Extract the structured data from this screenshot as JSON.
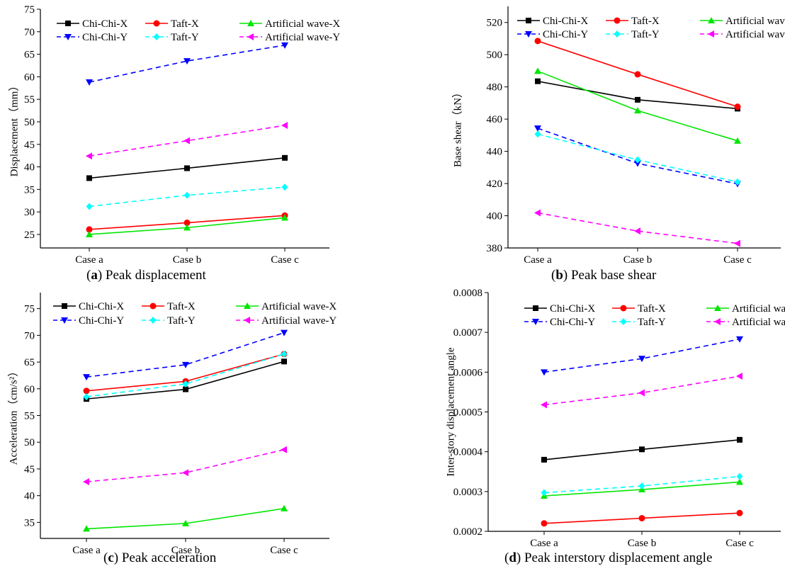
{
  "captions": [
    {
      "letter": "a",
      "open": "(",
      "close": ")",
      "text": " Peak displacement"
    },
    {
      "letter": "b",
      "open": "(",
      "close": ")",
      "text": " Peak base shear"
    },
    {
      "letter": "c",
      "open": "(",
      "close": ")",
      "text": " Peak acceleration"
    },
    {
      "letter": "d",
      "open": "(",
      "close": ")",
      "text": " Peak interstory displacement angle"
    }
  ],
  "chart_data": [
    {
      "type": "line",
      "title": "",
      "xlabel": "",
      "ylabel": "Displacement（mm）",
      "categories": [
        "Case a",
        "Case b",
        "Case c"
      ],
      "ylim": [
        22,
        75
      ],
      "yticks": [
        25,
        30,
        35,
        40,
        45,
        50,
        55,
        60,
        65,
        70,
        75
      ],
      "ytick_labels": [
        "25",
        "30",
        "35",
        "40",
        "45",
        "50",
        "55",
        "60",
        "65",
        "70",
        "75"
      ],
      "grid": false,
      "legend": "top",
      "series": [
        {
          "name": "Chi-Chi-X",
          "values": [
            37.5,
            39.7,
            42.0
          ],
          "color": "#000000",
          "marker": "square",
          "dash": "solid"
        },
        {
          "name": "Taft-X",
          "values": [
            26.1,
            27.6,
            29.2
          ],
          "color": "#ff0000",
          "marker": "circle",
          "dash": "solid"
        },
        {
          "name": "Artificial wave-X",
          "values": [
            25.0,
            26.5,
            28.7
          ],
          "color": "#00e600",
          "marker": "triangle-up",
          "dash": "solid"
        },
        {
          "name": "Chi-Chi-Y",
          "values": [
            58.8,
            63.5,
            67.0
          ],
          "color": "#0000ff",
          "marker": "triangle-down",
          "dash": "dashed"
        },
        {
          "name": "Taft-Y",
          "values": [
            31.2,
            33.7,
            35.5
          ],
          "color": "#00ffff",
          "marker": "diamond",
          "dash": "dashed"
        },
        {
          "name": "Artificial wave-Y",
          "values": [
            42.4,
            45.8,
            49.2
          ],
          "color": "#ff00ff",
          "marker": "triangle-left",
          "dash": "dashed"
        }
      ]
    },
    {
      "type": "line",
      "title": "",
      "xlabel": "",
      "ylabel": "Base shear（kN）",
      "categories": [
        "Case a",
        "Case b",
        "Case c"
      ],
      "ylim": [
        380,
        530
      ],
      "yticks": [
        380,
        400,
        420,
        440,
        460,
        480,
        500,
        520
      ],
      "ytick_labels": [
        "380",
        "400",
        "420",
        "440",
        "460",
        "480",
        "500",
        "520"
      ],
      "grid": false,
      "legend": "top",
      "series": [
        {
          "name": "Chi-Chi-X",
          "values": [
            483.5,
            472.0,
            466.5
          ],
          "color": "#000000",
          "marker": "square",
          "dash": "solid"
        },
        {
          "name": "Taft-X",
          "values": [
            508.5,
            487.8,
            467.7
          ],
          "color": "#ff0000",
          "marker": "circle",
          "dash": "solid"
        },
        {
          "name": "Artificial wave-X",
          "values": [
            489.8,
            465.3,
            446.5
          ],
          "color": "#00e600",
          "marker": "triangle-up",
          "dash": "solid"
        },
        {
          "name": "Chi-Chi-Y",
          "values": [
            454.3,
            432.5,
            419.8
          ],
          "color": "#0000ff",
          "marker": "triangle-down",
          "dash": "dashed"
        },
        {
          "name": "Taft-Y",
          "values": [
            450.7,
            434.7,
            421.0
          ],
          "color": "#00ffff",
          "marker": "diamond",
          "dash": "dashed"
        },
        {
          "name": "Artificial wave-Y",
          "values": [
            401.8,
            390.5,
            382.8
          ],
          "color": "#ff00ff",
          "marker": "triangle-left",
          "dash": "dashed"
        }
      ]
    },
    {
      "type": "line",
      "title": "",
      "xlabel": "",
      "ylabel": "Acceleration（cm/s²）",
      "categories": [
        "Case a",
        "Case b",
        "Case c"
      ],
      "ylim": [
        32,
        78
      ],
      "yticks": [
        35,
        40,
        45,
        50,
        55,
        60,
        65,
        70,
        75
      ],
      "ytick_labels": [
        "35",
        "40",
        "45",
        "50",
        "55",
        "60",
        "65",
        "70",
        "75"
      ],
      "grid": false,
      "legend": "top",
      "series": [
        {
          "name": "Chi-Chi-X",
          "values": [
            58.1,
            59.9,
            65.1
          ],
          "color": "#000000",
          "marker": "square",
          "dash": "solid"
        },
        {
          "name": "Taft-X",
          "values": [
            59.6,
            61.4,
            66.5
          ],
          "color": "#ff0000",
          "marker": "circle",
          "dash": "solid"
        },
        {
          "name": "Artificial wave-X",
          "values": [
            33.8,
            34.8,
            37.6
          ],
          "color": "#00e600",
          "marker": "triangle-up",
          "dash": "solid"
        },
        {
          "name": "Chi-Chi-Y",
          "values": [
            62.2,
            64.5,
            70.5
          ],
          "color": "#0000ff",
          "marker": "triangle-down",
          "dash": "dashed"
        },
        {
          "name": "Taft-Y",
          "values": [
            58.5,
            60.9,
            66.5
          ],
          "color": "#00ffff",
          "marker": "diamond",
          "dash": "dashed"
        },
        {
          "name": "Artificial wave-Y",
          "values": [
            42.6,
            44.3,
            48.6
          ],
          "color": "#ff00ff",
          "marker": "triangle-left",
          "dash": "dashed"
        }
      ]
    },
    {
      "type": "line",
      "title": "",
      "xlabel": "",
      "ylabel": "Inter-story displacement angle",
      "categories": [
        "Case a",
        "Case b",
        "Case c"
      ],
      "ylim": [
        0.0002,
        0.0008
      ],
      "yticks": [
        0.0002,
        0.0003,
        0.0004,
        0.0005,
        0.0006,
        0.0007,
        0.0008
      ],
      "ytick_labels": [
        "0.0002",
        "0.0003",
        "0.0004",
        "0.0005",
        "0.0006",
        "0.0007",
        "0.0008"
      ],
      "grid": false,
      "legend": "top",
      "series": [
        {
          "name": "Chi-Chi-X",
          "values": [
            0.00038,
            0.000406,
            0.00043
          ],
          "color": "#000000",
          "marker": "square",
          "dash": "solid"
        },
        {
          "name": "Taft-X",
          "values": [
            0.00022,
            0.000233,
            0.000246
          ],
          "color": "#ff0000",
          "marker": "circle",
          "dash": "solid"
        },
        {
          "name": "Artificial wave-X",
          "values": [
            0.000289,
            0.000305,
            0.000324
          ],
          "color": "#00e600",
          "marker": "triangle-up",
          "dash": "solid"
        },
        {
          "name": "Chi-Chi-Y",
          "values": [
            0.0006,
            0.000634,
            0.000683
          ],
          "color": "#0000ff",
          "marker": "triangle-down",
          "dash": "dashed"
        },
        {
          "name": "Taft-Y",
          "values": [
            0.000297,
            0.000314,
            0.000338
          ],
          "color": "#00ffff",
          "marker": "diamond",
          "dash": "dashed"
        },
        {
          "name": "Artificial wave-Y",
          "values": [
            0.000518,
            0.000548,
            0.00059
          ],
          "color": "#ff00ff",
          "marker": "triangle-left",
          "dash": "dashed"
        }
      ]
    }
  ]
}
